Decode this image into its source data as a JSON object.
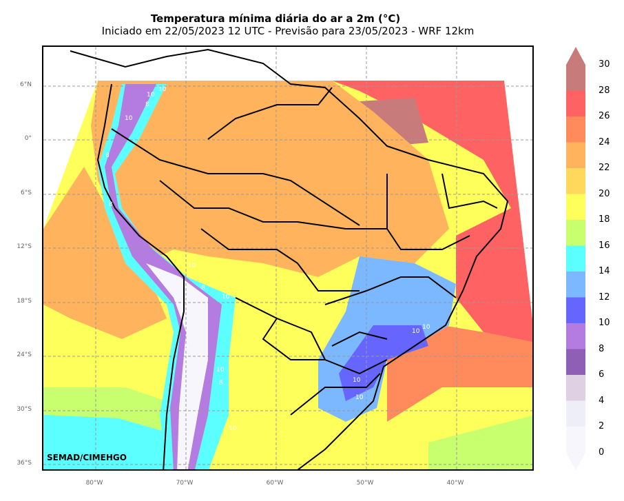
{
  "title": "Temperatura mínima diária do ar a 2m (°C)",
  "subtitle": "Iniciado em 22/05/2023 12 UTC - Previsão para 23/05/2023 - WRF 12km",
  "credit": "SEMAD/CIMEHGO",
  "lat_ticks": [
    "6°N",
    "0°",
    "6°S",
    "12°S",
    "18°S",
    "24°S",
    "30°S",
    "36°S"
  ],
  "lon_ticks": [
    "80°W",
    "70°W",
    "60°W",
    "50°W",
    "40°W"
  ],
  "colorbar": {
    "labels": [
      "30",
      "28",
      "26",
      "24",
      "22",
      "20",
      "18",
      "16",
      "14",
      "12",
      "10",
      "8",
      "6",
      "4",
      "2",
      "0"
    ],
    "colors": [
      "#c77b7b",
      "#ff6262",
      "#ff8a5c",
      "#ffb35c",
      "#ffd85c",
      "#ffff5c",
      "#c8ff6e",
      "#5cffff",
      "#7bb8ff",
      "#6666ff",
      "#b47be0",
      "#8e5fb4",
      "#e0d0e4",
      "#eeeef8",
      "#f6f6fc"
    ]
  },
  "contour_labels": [
    "10",
    "10",
    "8",
    "10",
    "8",
    "8",
    "10",
    "8",
    "10",
    "8",
    "10",
    "10",
    "10",
    "10",
    "10",
    "8",
    "10"
  ]
}
